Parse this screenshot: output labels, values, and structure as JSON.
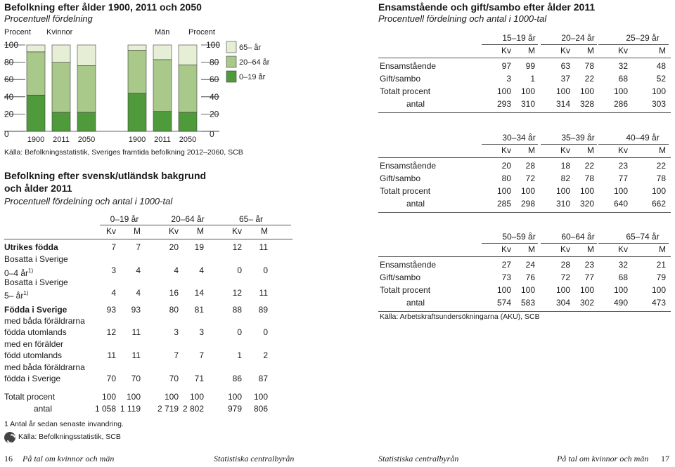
{
  "chart": {
    "title": "Befolkning efter ålder 1900, 2011 och 2050",
    "subtitle": "Procentuell fördelning",
    "left_label": "Procent",
    "right_label": "Procent",
    "women_label": "Kvinnor",
    "men_label": "Män",
    "source": "Källa: Befolkningsstatistik, Sveriges framtida befolkning 2012–2060, SCB"
  },
  "chart_data": {
    "type": "bar",
    "stacked": true,
    "groups": [
      "Kvinnor",
      "Män"
    ],
    "categories": [
      "1900",
      "2011",
      "2050",
      "1900",
      "2011",
      "2050"
    ],
    "ylim": [
      0,
      100
    ],
    "yticks": [
      "0",
      "20",
      "40",
      "60",
      "80",
      "100"
    ],
    "series": [
      {
        "name": "0–19 år",
        "color": "#4f9a3a",
        "values": [
          42,
          22,
          22,
          44,
          23,
          22
        ]
      },
      {
        "name": "20–64 år",
        "color": "#a8c98a",
        "values": [
          50,
          58,
          54,
          50,
          60,
          55
        ]
      },
      {
        "name": "65– år",
        "color": "#e6efd6",
        "values": [
          8,
          20,
          24,
          6,
          17,
          23
        ]
      }
    ],
    "legend": [
      "65– år",
      "20–64 år",
      "0–19 år"
    ]
  },
  "bakgrund": {
    "title_line1": "Befolkning efter svensk/utländsk bakgrund",
    "title_line2": "och ålder 2011",
    "subtitle": "Procentuell fördelning och antal i 1000-tal",
    "age_groups": [
      "0–19 år",
      "20–64 år",
      "65– år"
    ],
    "sex": [
      "Kv",
      "M",
      "Kv",
      "M",
      "Kv",
      "M"
    ],
    "rows": [
      {
        "label": "Utrikes födda",
        "bold": true,
        "values": [
          "7",
          "7",
          "20",
          "19",
          "12",
          "11"
        ]
      },
      {
        "label": "Bosatta i Sverige",
        "values": []
      },
      {
        "label": "0–4 år",
        "sup": "1)",
        "values": [
          "3",
          "4",
          "4",
          "4",
          "0",
          "0"
        ]
      },
      {
        "label": "Bosatta i Sverige",
        "values": []
      },
      {
        "label": "5– år",
        "sup": "1)",
        "values": [
          "4",
          "4",
          "16",
          "14",
          "12",
          "11"
        ]
      },
      {
        "label": "Födda i Sverige",
        "bold": true,
        "values": [
          "93",
          "93",
          "80",
          "81",
          "88",
          "89"
        ]
      },
      {
        "label": "med båda föräldrarna",
        "values": []
      },
      {
        "label": "födda utomlands",
        "values": [
          "12",
          "11",
          "3",
          "3",
          "0",
          "0"
        ]
      },
      {
        "label": "med en förälder",
        "values": []
      },
      {
        "label": "född utomlands",
        "values": [
          "11",
          "11",
          "7",
          "7",
          "1",
          "2"
        ]
      },
      {
        "label": "med båda föräldrarna",
        "values": []
      },
      {
        "label": "födda i Sverige",
        "values": [
          "70",
          "70",
          "70",
          "71",
          "86",
          "87"
        ]
      },
      {
        "label": "Totalt  procent",
        "values": [
          "100",
          "100",
          "100",
          "100",
          "100",
          "100"
        ]
      },
      {
        "label": "antal",
        "values": [
          "1 058",
          "1 119",
          "2 719",
          "2 802",
          "979",
          "806"
        ]
      }
    ],
    "footnote": "1  Antal år sedan senaste invandring.",
    "source": "Källa: Befolkningsstatistik, SCB"
  },
  "civil": {
    "title": "Ensamstående och gift/sambo efter ålder 2011",
    "subtitle": "Procentuell fördelning och antal i 1000-tal",
    "row_labels": [
      "Ensamstående",
      "Gift/sambo",
      "Totalt procent",
      "antal"
    ],
    "sex": [
      "Kv",
      "M",
      "Kv",
      "M",
      "Kv",
      "M"
    ],
    "blocks": [
      {
        "ages": [
          "15–19 år",
          "20–24 år",
          "25–29 år"
        ],
        "rows": [
          [
            "97",
            "99",
            "63",
            "78",
            "32",
            "48"
          ],
          [
            "3",
            "1",
            "37",
            "22",
            "68",
            "52"
          ],
          [
            "100",
            "100",
            "100",
            "100",
            "100",
            "100"
          ],
          [
            "293",
            "310",
            "314",
            "328",
            "286",
            "303"
          ]
        ]
      },
      {
        "ages": [
          "30–34 år",
          "35–39 år",
          "40–49 år"
        ],
        "rows": [
          [
            "20",
            "28",
            "18",
            "22",
            "23",
            "22"
          ],
          [
            "80",
            "72",
            "82",
            "78",
            "77",
            "78"
          ],
          [
            "100",
            "100",
            "100",
            "100",
            "100",
            "100"
          ],
          [
            "285",
            "298",
            "310",
            "320",
            "640",
            "662"
          ]
        ]
      },
      {
        "ages": [
          "50–59 år",
          "60–64 år",
          "65–74 år"
        ],
        "rows": [
          [
            "27",
            "24",
            "28",
            "23",
            "32",
            "21"
          ],
          [
            "73",
            "76",
            "72",
            "77",
            "68",
            "79"
          ],
          [
            "100",
            "100",
            "100",
            "100",
            "100",
            "100"
          ],
          [
            "574",
            "583",
            "304",
            "302",
            "490",
            "473"
          ]
        ]
      }
    ],
    "source": "Källa: Arbetskraftsundersökningarna (AKU), SCB"
  },
  "footer": {
    "left_page": "16",
    "left_title": "På tal om kvinnor och män",
    "left_publisher": "Statistiska centralbyrån",
    "right_publisher": "Statistiska centralbyrån",
    "right_title": "På tal om kvinnor och män",
    "right_page": "17"
  }
}
